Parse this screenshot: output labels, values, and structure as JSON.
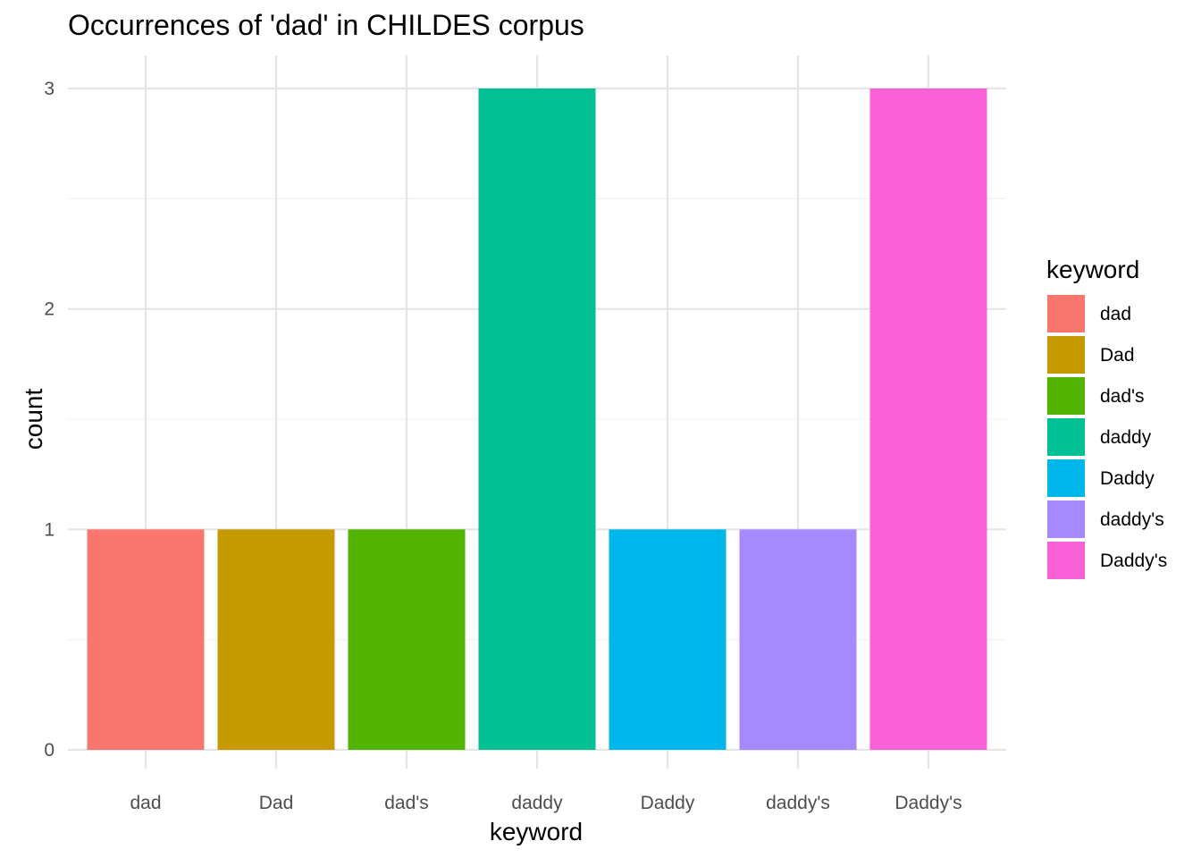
{
  "chart_data": {
    "type": "bar",
    "title": "Occurrences of 'dad' in CHILDES corpus",
    "xlabel": "keyword",
    "ylabel": "count",
    "categories": [
      "dad",
      "Dad",
      "dad's",
      "daddy",
      "Daddy",
      "daddy's",
      "Daddy's"
    ],
    "values": [
      1,
      1,
      1,
      3,
      1,
      1,
      3
    ],
    "colors": [
      "#F8766D",
      "#C49A00",
      "#53B400",
      "#00C094",
      "#00B6EB",
      "#A58AFF",
      "#FB61D7"
    ],
    "ylim": [
      0,
      3
    ],
    "yticks": [
      0,
      1,
      2,
      3
    ],
    "grid": true,
    "legend": {
      "title": "keyword",
      "position": "right",
      "entries": [
        "dad",
        "Dad",
        "dad's",
        "daddy",
        "Daddy",
        "daddy's",
        "Daddy's"
      ]
    }
  }
}
